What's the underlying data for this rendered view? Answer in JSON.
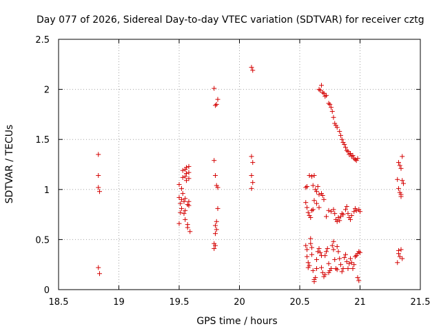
{
  "chart_data": {
    "type": "scatter",
    "title": "Day 077 of 2026, Sidereal Day-to-day VTEC variation (SDTVAR) for receiver cztg",
    "xlabel": "GPS time / hours",
    "ylabel": "SDTVAR / TECUs",
    "xlim": [
      18.5,
      21.5
    ],
    "ylim": [
      0,
      2.5
    ],
    "xticks": [
      "18.5",
      "19",
      "19.5",
      "20",
      "20.5",
      "21",
      "21.5"
    ],
    "yticks": [
      "0",
      "0.5",
      "1",
      "1.5",
      "2",
      "2.5"
    ],
    "grid": true,
    "marker": "+",
    "color": "#d40000",
    "series": [
      {
        "name": "SDTVAR",
        "points": [
          [
            18.83,
            1.35
          ],
          [
            18.83,
            1.14
          ],
          [
            18.83,
            1.02
          ],
          [
            18.84,
            0.98
          ],
          [
            18.83,
            0.22
          ],
          [
            18.84,
            0.16
          ],
          [
            19.5,
            1.05
          ],
          [
            19.5,
            0.92
          ],
          [
            19.51,
            0.86
          ],
          [
            19.51,
            0.77
          ],
          [
            19.5,
            0.66
          ],
          [
            19.52,
            1.01
          ],
          [
            19.52,
            0.9
          ],
          [
            19.52,
            0.81
          ],
          [
            19.53,
            1.19
          ],
          [
            19.53,
            1.12
          ],
          [
            19.53,
            0.96
          ],
          [
            19.54,
            0.88
          ],
          [
            19.54,
            0.76
          ],
          [
            19.55,
            1.2
          ],
          [
            19.55,
            1.13
          ],
          [
            19.55,
            0.91
          ],
          [
            19.55,
            0.79
          ],
          [
            19.55,
            0.7
          ],
          [
            19.56,
            1.22
          ],
          [
            19.56,
            1.16
          ],
          [
            19.56,
            1.09
          ],
          [
            19.57,
            0.85
          ],
          [
            19.57,
            0.65
          ],
          [
            19.57,
            0.62
          ],
          [
            19.58,
            1.23
          ],
          [
            19.58,
            1.17
          ],
          [
            19.58,
            1.11
          ],
          [
            19.58,
            0.88
          ],
          [
            19.58,
            0.84
          ],
          [
            19.59,
            0.58
          ],
          [
            19.79,
            2.01
          ],
          [
            19.8,
            1.84
          ],
          [
            19.81,
            1.85
          ],
          [
            19.82,
            1.9
          ],
          [
            19.79,
            1.29
          ],
          [
            19.8,
            1.14
          ],
          [
            19.81,
            1.04
          ],
          [
            19.82,
            1.02
          ],
          [
            19.82,
            0.81
          ],
          [
            19.81,
            0.68
          ],
          [
            19.8,
            0.64
          ],
          [
            19.81,
            0.6
          ],
          [
            19.8,
            0.56
          ],
          [
            19.79,
            0.46
          ],
          [
            19.8,
            0.44
          ],
          [
            19.79,
            0.41
          ],
          [
            20.1,
            2.22
          ],
          [
            20.11,
            2.19
          ],
          [
            20.1,
            1.33
          ],
          [
            20.11,
            1.27
          ],
          [
            20.1,
            1.14
          ],
          [
            20.11,
            1.07
          ],
          [
            20.1,
            1.01
          ],
          [
            20.55,
            1.02
          ],
          [
            20.56,
            1.03
          ],
          [
            20.58,
            1.14
          ],
          [
            20.6,
            1.13
          ],
          [
            20.62,
            1.14
          ],
          [
            20.61,
            1.04
          ],
          [
            20.63,
            1.0
          ],
          [
            20.64,
            0.98
          ],
          [
            20.65,
            1.03
          ],
          [
            20.66,
            0.95
          ],
          [
            20.68,
            0.96
          ],
          [
            20.69,
            0.94
          ],
          [
            20.7,
            0.9
          ],
          [
            20.62,
            0.89
          ],
          [
            20.64,
            0.86
          ],
          [
            20.66,
            0.82
          ],
          [
            20.55,
            0.87
          ],
          [
            20.56,
            0.82
          ],
          [
            20.57,
            0.77
          ],
          [
            20.58,
            0.74
          ],
          [
            20.59,
            0.72
          ],
          [
            20.6,
            0.79
          ],
          [
            20.61,
            0.8
          ],
          [
            20.72,
            0.73
          ],
          [
            20.74,
            0.79
          ],
          [
            20.76,
            0.78
          ],
          [
            20.78,
            0.8
          ],
          [
            20.79,
            0.76
          ],
          [
            20.8,
            0.7
          ],
          [
            20.81,
            0.68
          ],
          [
            20.82,
            0.72
          ],
          [
            20.83,
            0.69
          ],
          [
            20.84,
            0.73
          ],
          [
            20.85,
            0.76
          ],
          [
            20.86,
            0.75
          ],
          [
            20.88,
            0.8
          ],
          [
            20.89,
            0.83
          ],
          [
            20.9,
            0.76
          ],
          [
            20.91,
            0.72
          ],
          [
            20.92,
            0.7
          ],
          [
            20.93,
            0.74
          ],
          [
            20.95,
            0.78
          ],
          [
            20.96,
            0.81
          ],
          [
            20.97,
            0.79
          ],
          [
            20.99,
            0.8
          ],
          [
            21.0,
            0.78
          ],
          [
            20.66,
            2.0
          ],
          [
            20.67,
            1.99
          ],
          [
            20.68,
            2.04
          ],
          [
            20.69,
            1.97
          ],
          [
            20.7,
            1.96
          ],
          [
            20.71,
            1.93
          ],
          [
            20.72,
            1.94
          ],
          [
            20.74,
            1.86
          ],
          [
            20.75,
            1.85
          ],
          [
            20.76,
            1.82
          ],
          [
            20.77,
            1.78
          ],
          [
            20.78,
            1.72
          ],
          [
            20.79,
            1.66
          ],
          [
            20.8,
            1.64
          ],
          [
            20.81,
            1.62
          ],
          [
            20.83,
            1.58
          ],
          [
            20.84,
            1.54
          ],
          [
            20.85,
            1.5
          ],
          [
            20.86,
            1.47
          ],
          [
            20.87,
            1.45
          ],
          [
            20.88,
            1.42
          ],
          [
            20.89,
            1.39
          ],
          [
            20.9,
            1.38
          ],
          [
            20.91,
            1.35
          ],
          [
            20.92,
            1.36
          ],
          [
            20.93,
            1.33
          ],
          [
            20.94,
            1.34
          ],
          [
            20.95,
            1.31
          ],
          [
            20.96,
            1.3
          ],
          [
            20.97,
            1.29
          ],
          [
            20.98,
            1.31
          ],
          [
            20.55,
            0.44
          ],
          [
            20.56,
            0.4
          ],
          [
            20.56,
            0.33
          ],
          [
            20.57,
            0.27
          ],
          [
            20.57,
            0.22
          ],
          [
            20.58,
            0.24
          ],
          [
            20.59,
            0.46
          ],
          [
            20.59,
            0.51
          ],
          [
            20.6,
            0.42
          ],
          [
            20.6,
            0.35
          ],
          [
            20.61,
            0.19
          ],
          [
            20.62,
            0.1
          ],
          [
            20.62,
            0.08
          ],
          [
            20.63,
            0.12
          ],
          [
            20.64,
            0.21
          ],
          [
            20.64,
            0.3
          ],
          [
            20.65,
            0.38
          ],
          [
            20.66,
            0.41
          ],
          [
            20.67,
            0.37
          ],
          [
            20.68,
            0.34
          ],
          [
            20.68,
            0.22
          ],
          [
            20.69,
            0.17
          ],
          [
            20.7,
            0.13
          ],
          [
            20.71,
            0.15
          ],
          [
            20.71,
            0.34
          ],
          [
            20.72,
            0.38
          ],
          [
            20.73,
            0.41
          ],
          [
            20.74,
            0.26
          ],
          [
            20.74,
            0.17
          ],
          [
            20.75,
            0.19
          ],
          [
            20.76,
            0.21
          ],
          [
            20.77,
            0.44
          ],
          [
            20.78,
            0.48
          ],
          [
            20.78,
            0.4
          ],
          [
            20.79,
            0.3
          ],
          [
            20.8,
            0.21
          ],
          [
            20.81,
            0.2
          ],
          [
            20.81,
            0.43
          ],
          [
            20.82,
            0.38
          ],
          [
            20.83,
            0.31
          ],
          [
            20.84,
            0.25
          ],
          [
            20.85,
            0.18
          ],
          [
            20.86,
            0.21
          ],
          [
            20.87,
            0.32
          ],
          [
            20.88,
            0.35
          ],
          [
            20.89,
            0.28
          ],
          [
            20.9,
            0.21
          ],
          [
            20.91,
            0.26
          ],
          [
            20.92,
            0.31
          ],
          [
            20.93,
            0.27
          ],
          [
            20.94,
            0.21
          ],
          [
            20.95,
            0.25
          ],
          [
            20.96,
            0.33
          ],
          [
            20.97,
            0.34
          ],
          [
            20.98,
            0.36
          ],
          [
            20.98,
            0.12
          ],
          [
            20.99,
            0.09
          ],
          [
            20.99,
            0.38
          ],
          [
            21.0,
            0.37
          ],
          [
            21.31,
            0.27
          ],
          [
            21.32,
            0.36
          ],
          [
            21.32,
            0.39
          ],
          [
            21.33,
            0.33
          ],
          [
            21.34,
            0.4
          ],
          [
            21.35,
            0.31
          ],
          [
            21.31,
            1.1
          ],
          [
            21.32,
            1.27
          ],
          [
            21.33,
            1.24
          ],
          [
            21.34,
            1.21
          ],
          [
            21.35,
            1.33
          ],
          [
            21.35,
            1.09
          ],
          [
            21.36,
            1.06
          ],
          [
            21.32,
            1.01
          ],
          [
            21.33,
            0.97
          ],
          [
            21.34,
            0.95
          ],
          [
            21.34,
            0.93
          ]
        ]
      }
    ]
  }
}
